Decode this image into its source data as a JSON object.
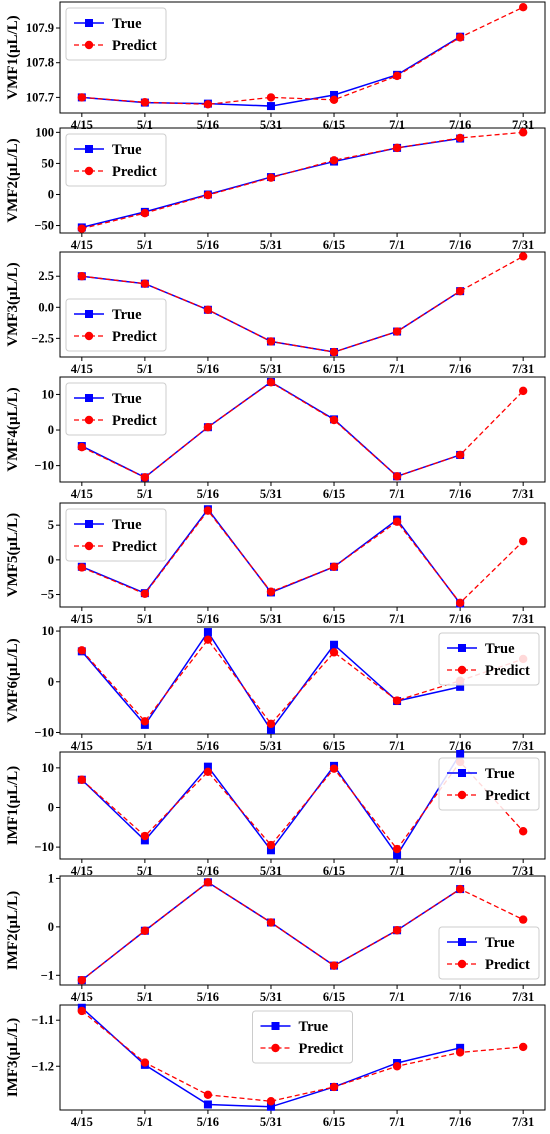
{
  "colors": {
    "true_series": "#0000ff",
    "predict_series": "#ff0000",
    "axis": "#000000",
    "background": "#ffffff"
  },
  "chart_data": [
    {
      "type": "line",
      "ylabel": "VMF1(μL/L)",
      "x": [
        "4/15",
        "5/1",
        "5/16",
        "5/31",
        "6/15",
        "7/1",
        "7/16",
        "7/31"
      ],
      "ylim": [
        107.655,
        107.975
      ],
      "yticks": [
        107.7,
        107.8,
        107.9
      ],
      "ytick_labels": [
        "107.7",
        "107.8",
        "107.9"
      ],
      "legend": "top-left",
      "series": [
        {
          "name": "True",
          "style": "solid-square",
          "values": [
            107.7,
            107.685,
            107.682,
            107.675,
            107.707,
            107.765,
            107.875,
            null
          ]
        },
        {
          "name": "Predict",
          "style": "dashed-circle",
          "values": [
            107.7,
            107.686,
            107.68,
            107.7,
            107.693,
            107.762,
            107.873,
            107.96
          ]
        }
      ]
    },
    {
      "type": "line",
      "ylabel": "VMF2(μL/L)",
      "x": [
        "4/15",
        "5/1",
        "5/16",
        "5/31",
        "6/15",
        "7/1",
        "7/16",
        "7/31"
      ],
      "ylim": [
        -62,
        107
      ],
      "yticks": [
        -50,
        0,
        50,
        100
      ],
      "ytick_labels": [
        "−50",
        "0",
        "50",
        "100"
      ],
      "legend": "top-left",
      "series": [
        {
          "name": "True",
          "style": "solid-square",
          "values": [
            -53,
            -28,
            0,
            28,
            53,
            75,
            90,
            null
          ]
        },
        {
          "name": "Predict",
          "style": "dashed-circle",
          "values": [
            -55,
            -30,
            -1,
            27,
            55,
            75,
            91,
            100
          ]
        }
      ]
    },
    {
      "type": "line",
      "ylabel": "VMF3(μL/L)",
      "x": [
        "4/15",
        "5/1",
        "5/16",
        "5/31",
        "6/15",
        "7/1",
        "7/16",
        "7/31"
      ],
      "ylim": [
        -4.0,
        4.45
      ],
      "yticks": [
        -2.5,
        0.0,
        2.5
      ],
      "ytick_labels": [
        "−2.5",
        "0.0",
        "2.5"
      ],
      "legend": "bottom-left",
      "series": [
        {
          "name": "True",
          "style": "solid-square",
          "values": [
            2.5,
            1.9,
            -0.2,
            -2.75,
            -3.6,
            -1.95,
            1.3,
            null
          ]
        },
        {
          "name": "Predict",
          "style": "dashed-circle",
          "values": [
            2.5,
            1.9,
            -0.2,
            -2.75,
            -3.6,
            -1.95,
            1.3,
            4.1
          ]
        }
      ]
    },
    {
      "type": "line",
      "ylabel": "VMF4(μL/L)",
      "x": [
        "4/15",
        "5/1",
        "5/16",
        "5/31",
        "6/15",
        "7/1",
        "7/16",
        "7/31"
      ],
      "ylim": [
        -14.6,
        14.9
      ],
      "yticks": [
        -10,
        0,
        10
      ],
      "ytick_labels": [
        "−10",
        "0",
        "10"
      ],
      "legend": "top-left",
      "series": [
        {
          "name": "True",
          "style": "solid-square",
          "values": [
            -4.5,
            -13.3,
            0.8,
            13.5,
            3.0,
            -13.0,
            -7.0,
            null
          ]
        },
        {
          "name": "Predict",
          "style": "dashed-circle",
          "values": [
            -4.8,
            -13.3,
            0.8,
            13.4,
            2.8,
            -13.0,
            -7.0,
            11.0
          ]
        }
      ]
    },
    {
      "type": "line",
      "ylabel": "VMF5(μL/L)",
      "x": [
        "4/15",
        "5/1",
        "5/16",
        "5/31",
        "6/15",
        "7/1",
        "7/16",
        "7/31"
      ],
      "ylim": [
        -6.8,
        8.2
      ],
      "yticks": [
        -5,
        0,
        5
      ],
      "ytick_labels": [
        "−5",
        "0",
        "5"
      ],
      "legend": "top-left",
      "series": [
        {
          "name": "True",
          "style": "solid-square",
          "values": [
            -1.0,
            -4.8,
            7.3,
            -4.7,
            -1.0,
            5.8,
            -6.3,
            null
          ]
        },
        {
          "name": "Predict",
          "style": "dashed-circle",
          "values": [
            -1.1,
            -4.9,
            7.1,
            -4.6,
            -1.0,
            5.5,
            -6.2,
            2.7
          ]
        }
      ]
    },
    {
      "type": "line",
      "ylabel": "VMF6(μL/L)",
      "x": [
        "4/15",
        "5/1",
        "5/16",
        "5/31",
        "6/15",
        "7/1",
        "7/16",
        "7/31"
      ],
      "ylim": [
        -10.3,
        10.8
      ],
      "yticks": [
        -10,
        0,
        10
      ],
      "ytick_labels": [
        "−10",
        "0",
        "10"
      ],
      "legend": "top-right",
      "series": [
        {
          "name": "True",
          "style": "solid-square",
          "values": [
            6.0,
            -8.5,
            9.8,
            -9.5,
            7.3,
            -3.8,
            -1.0,
            null
          ]
        },
        {
          "name": "Predict",
          "style": "dashed-circle",
          "values": [
            6.2,
            -7.8,
            8.3,
            -8.3,
            5.8,
            -3.7,
            0.2,
            4.5
          ]
        }
      ]
    },
    {
      "type": "line",
      "ylabel": "IMF1(μL/L)",
      "x": [
        "4/15",
        "5/1",
        "5/16",
        "5/31",
        "6/15",
        "7/1",
        "7/16",
        "7/31"
      ],
      "ylim": [
        -13.0,
        14.0
      ],
      "yticks": [
        -10,
        0,
        10
      ],
      "ytick_labels": [
        "−10",
        "0",
        "10"
      ],
      "legend": "top-right",
      "series": [
        {
          "name": "True",
          "style": "solid-square",
          "values": [
            7.0,
            -8.3,
            10.3,
            -10.8,
            10.5,
            -12.0,
            13.5,
            null
          ]
        },
        {
          "name": "Predict",
          "style": "dashed-circle",
          "values": [
            7.0,
            -7.2,
            9.0,
            -9.5,
            9.8,
            -10.5,
            11.5,
            -6.0
          ]
        }
      ]
    },
    {
      "type": "line",
      "ylabel": "IMF2(μL/L)",
      "x": [
        "4/15",
        "5/1",
        "5/16",
        "5/31",
        "6/15",
        "7/1",
        "7/16",
        "7/31"
      ],
      "ylim": [
        -1.2,
        1.05
      ],
      "yticks": [
        -1,
        0,
        1
      ],
      "ytick_labels": [
        "−1",
        "0",
        "1"
      ],
      "legend": "bottom-right",
      "series": [
        {
          "name": "True",
          "style": "solid-square",
          "values": [
            -1.1,
            -0.08,
            0.92,
            0.09,
            -0.8,
            -0.07,
            0.78,
            null
          ]
        },
        {
          "name": "Predict",
          "style": "dashed-circle",
          "values": [
            -1.1,
            -0.08,
            0.92,
            0.09,
            -0.8,
            -0.07,
            0.78,
            0.15
          ]
        }
      ]
    },
    {
      "type": "line",
      "ylabel": "IMF3(μL/L)",
      "x": [
        "4/15",
        "5/1",
        "5/16",
        "5/31",
        "6/15",
        "7/1",
        "7/16",
        "7/31"
      ],
      "ylim": [
        -1.295,
        -1.067
      ],
      "yticks": [
        -1.2,
        -1.1
      ],
      "ytick_labels": [
        "−1.2",
        "−1.1"
      ],
      "legend": "top-center",
      "series": [
        {
          "name": "True",
          "style": "solid-square",
          "values": [
            -1.073,
            -1.197,
            -1.283,
            -1.288,
            -1.245,
            -1.193,
            -1.16,
            null
          ]
        },
        {
          "name": "Predict",
          "style": "dashed-circle",
          "values": [
            -1.08,
            -1.192,
            -1.262,
            -1.276,
            -1.245,
            -1.2,
            -1.17,
            -1.158
          ]
        }
      ]
    }
  ]
}
